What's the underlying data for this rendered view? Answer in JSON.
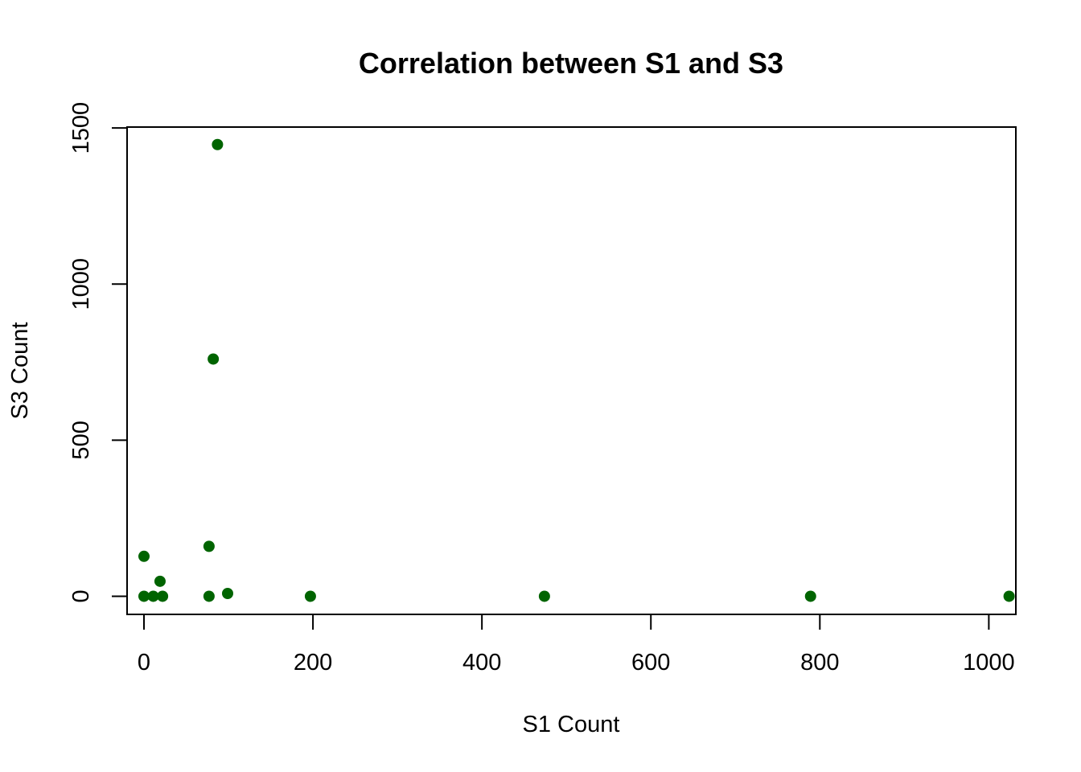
{
  "chart_data": {
    "type": "scatter",
    "title": "Correlation between S1 and S3",
    "xlabel": "S1 Count",
    "ylabel": "S3 Count",
    "xlim": [
      -20,
      1032
    ],
    "ylim": [
      -58,
      1503
    ],
    "x_ticks": [
      0,
      200,
      400,
      600,
      800,
      1000
    ],
    "x_tick_labels": [
      "0",
      "200",
      "400",
      "600",
      "800",
      "1000"
    ],
    "y_ticks": [
      0,
      500,
      1000,
      1500
    ],
    "y_tick_labels": [
      "0",
      "500",
      "1000",
      "1500"
    ],
    "grid": false,
    "point_color": "#006400",
    "points": [
      {
        "x": 0,
        "y": 128
      },
      {
        "x": 0,
        "y": 0
      },
      {
        "x": 11,
        "y": 0
      },
      {
        "x": 19,
        "y": 48
      },
      {
        "x": 22,
        "y": 0
      },
      {
        "x": 77,
        "y": 160
      },
      {
        "x": 77,
        "y": 0
      },
      {
        "x": 82,
        "y": 760
      },
      {
        "x": 87,
        "y": 1447
      },
      {
        "x": 99,
        "y": 9
      },
      {
        "x": 197,
        "y": 0
      },
      {
        "x": 474,
        "y": 0
      },
      {
        "x": 789,
        "y": 0
      },
      {
        "x": 1024,
        "y": 0
      }
    ]
  }
}
